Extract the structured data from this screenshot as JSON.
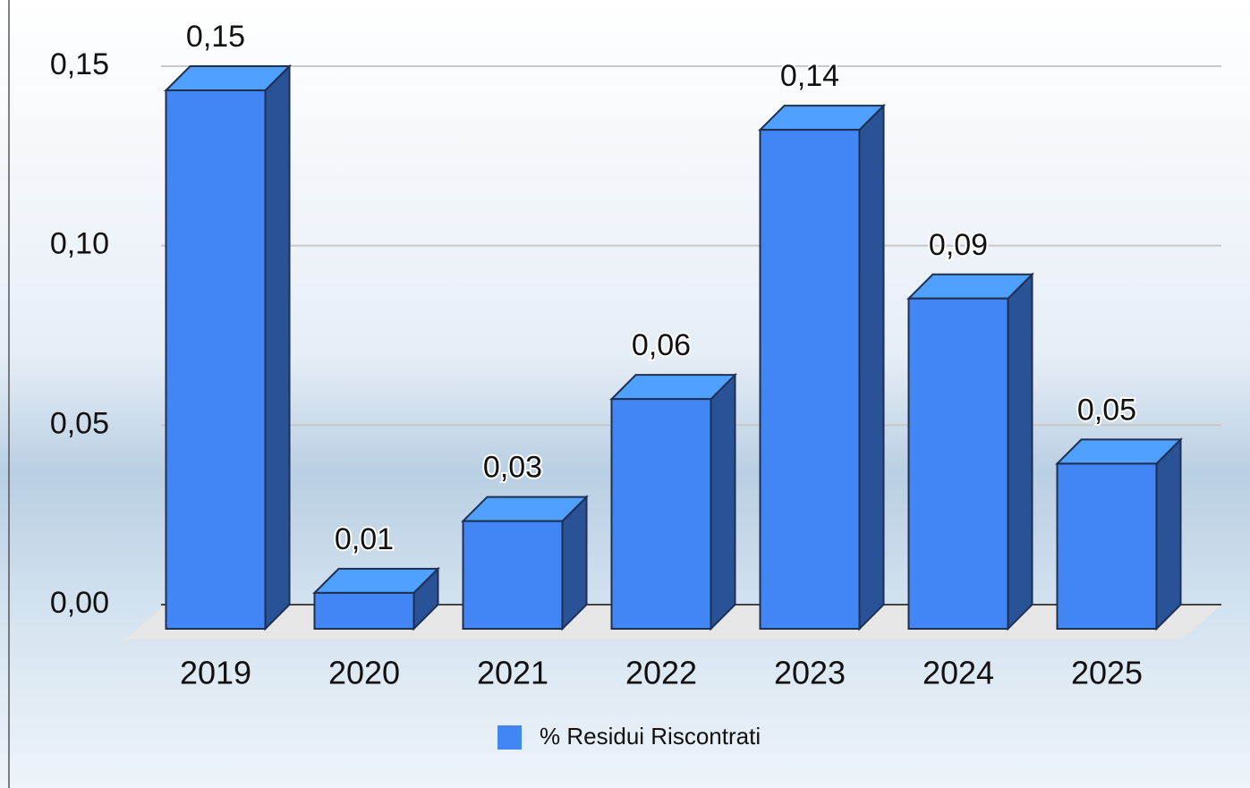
{
  "chart_data": {
    "type": "bar3d",
    "categories": [
      "2019",
      "2020",
      "2021",
      "2022",
      "2023",
      "2024",
      "2025"
    ],
    "series": [
      {
        "name": "% Residui Riscontrati",
        "color": "#4285f4",
        "values": [
          0.15,
          0.01,
          0.03,
          0.064,
          0.139,
          0.092,
          0.046
        ],
        "value_labels": [
          "0,15",
          "0,01",
          "0,03",
          "0,06",
          "0,14",
          "0,09",
          "0,05"
        ]
      }
    ],
    "ylim": [
      0,
      0.15
    ],
    "yticks": [
      {
        "value": 0,
        "label": "0,00"
      },
      {
        "value": 0.05,
        "label": "0,05"
      },
      {
        "value": 0.1,
        "label": "0,10"
      },
      {
        "value": 0.15,
        "label": "0,15"
      }
    ],
    "grid": true,
    "legend": "bottom"
  }
}
